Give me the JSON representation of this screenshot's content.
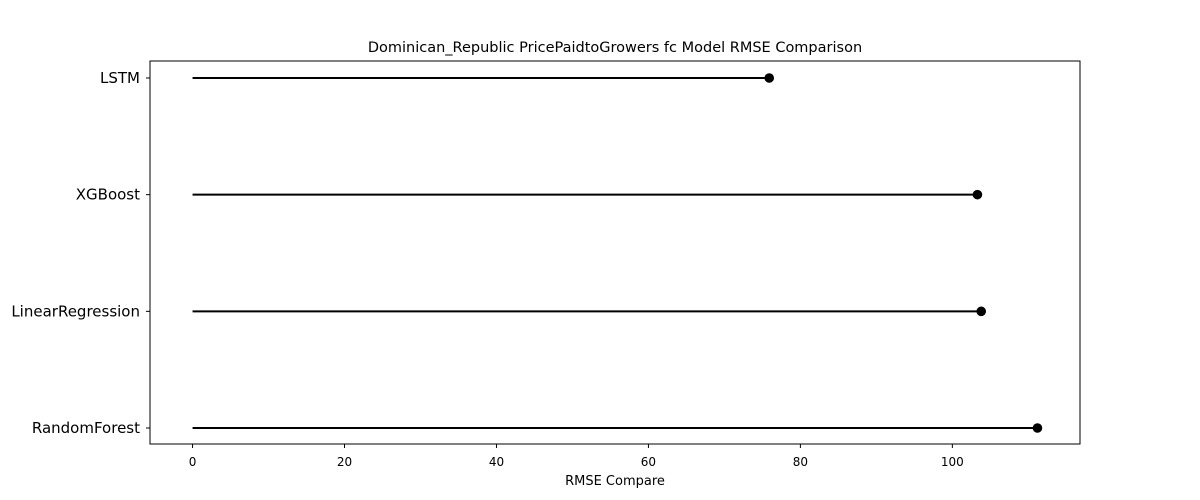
{
  "chart_data": {
    "type": "lollipop",
    "orientation": "horizontal",
    "title": "Dominican_Republic PricePaidtoGrowers fc Model RMSE Comparison",
    "xlabel": "RMSE Compare",
    "ylabel": "",
    "categories": [
      "LSTM",
      "XGBoost",
      "LinearRegression",
      "RandomForest"
    ],
    "values": [
      75.9,
      103.3,
      103.8,
      111.2
    ],
    "xlim": [
      -5.6,
      116.8
    ],
    "xticks": [
      0,
      20,
      40,
      60,
      80,
      100
    ],
    "xtick_labels": [
      "0",
      "20",
      "40",
      "60",
      "80",
      "100"
    ],
    "line_color": "#000000",
    "marker_color": "#000000",
    "grid": false,
    "legend": "none"
  }
}
